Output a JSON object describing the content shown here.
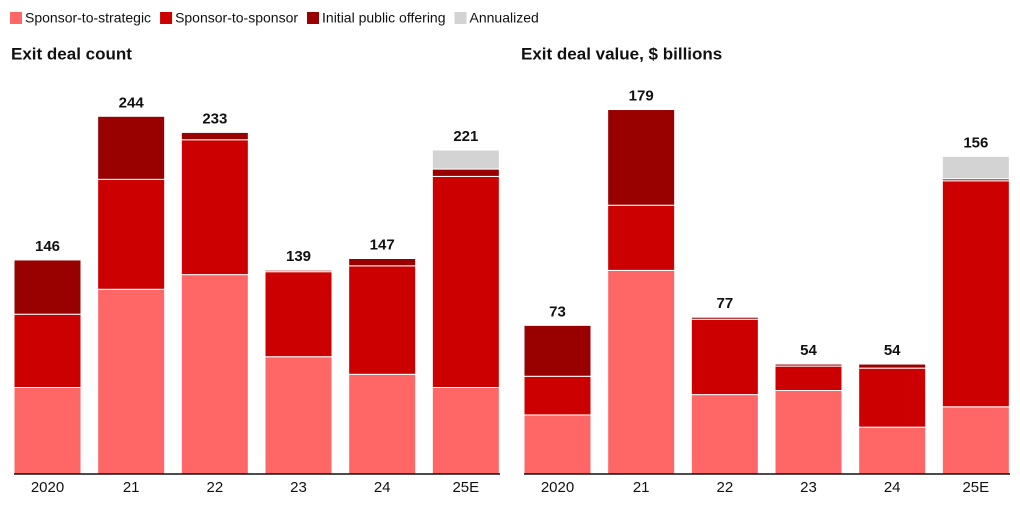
{
  "legend": [
    {
      "name": "Sponsor-to-strategic",
      "color": "#ff6666"
    },
    {
      "name": "Sponsor-to-sponsor",
      "color": "#cc0000"
    },
    {
      "name": "Initial public offering",
      "color": "#990000"
    },
    {
      "name": "Annualized",
      "color": "#d3d3d3"
    }
  ],
  "chart_data": [
    {
      "type": "stacked_bar",
      "title": "Exit deal count",
      "categories": [
        "2020",
        "21",
        "22",
        "23",
        "24",
        "25E"
      ],
      "series": [
        {
          "values": [
            59,
            126,
            136,
            80,
            68,
            59
          ]
        },
        {
          "values": [
            50,
            75,
            92,
            58,
            74,
            144
          ]
        },
        {
          "values": [
            37,
            43,
            5,
            1,
            5,
            5
          ]
        },
        {
          "values": [
            null,
            null,
            null,
            null,
            null,
            13
          ]
        }
      ],
      "totals": [
        146,
        244,
        233,
        139,
        147,
        221
      ],
      "ylim": [
        0,
        250
      ]
    },
    {
      "type": "stacked_bar",
      "title": "Exit deal value, $ billions",
      "categories": [
        "2020",
        "21",
        "22",
        "23",
        "24",
        "25E"
      ],
      "series": [
        {
          "values": [
            29,
            100,
            39,
            41,
            23,
            33
          ]
        },
        {
          "values": [
            19,
            32,
            37,
            12,
            29,
            111
          ]
        },
        {
          "values": [
            25,
            47,
            1,
            1,
            2,
            1
          ]
        },
        {
          "values": [
            null,
            null,
            null,
            null,
            null,
            11
          ]
        }
      ],
      "totals": [
        73,
        179,
        77,
        54,
        54,
        156
      ],
      "ylim": [
        0,
        180
      ]
    }
  ]
}
